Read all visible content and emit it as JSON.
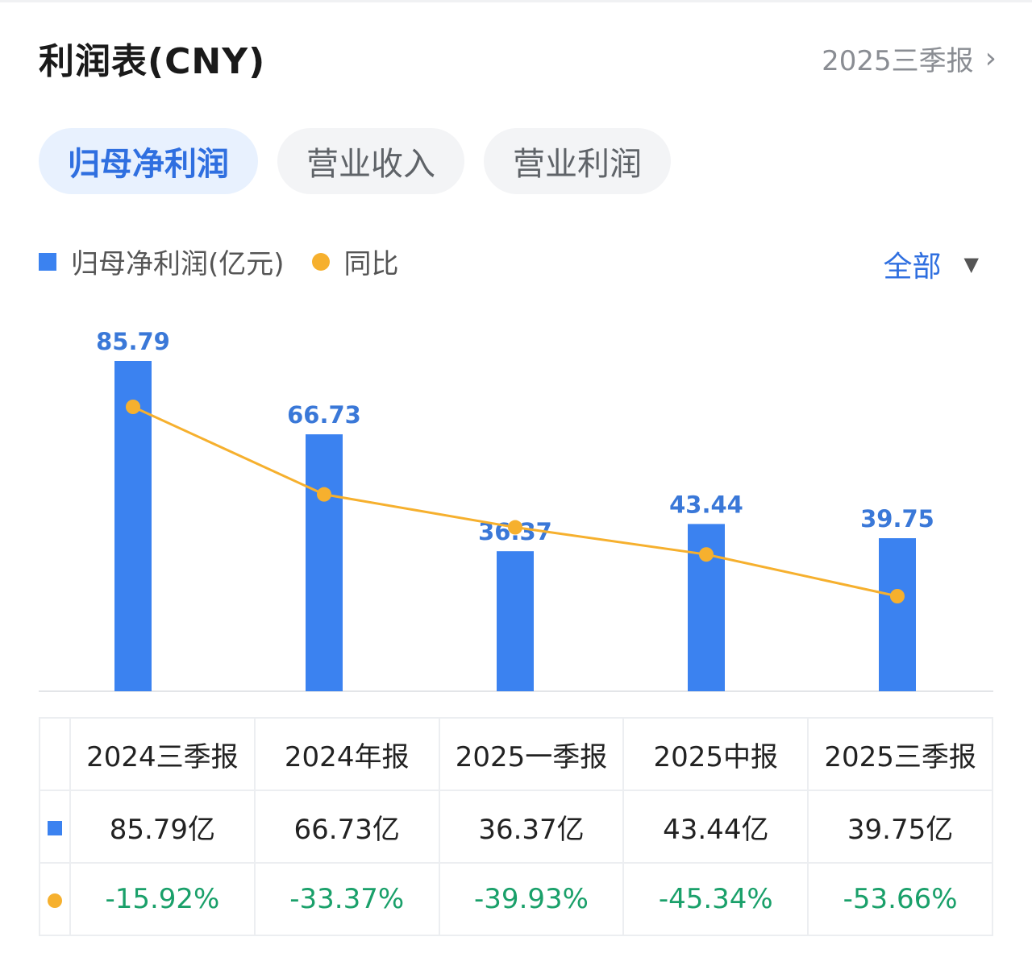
{
  "header": {
    "title": "利润表(CNY)",
    "period": "2025三季报"
  },
  "tabs": [
    {
      "label": "归母净利润",
      "active": true
    },
    {
      "label": "营业收入",
      "active": false
    },
    {
      "label": "营业利润",
      "active": false
    }
  ],
  "legend": {
    "bar_label": "归母净利润(亿元)",
    "line_label": "同比"
  },
  "filter": {
    "label": "全部"
  },
  "colors": {
    "bar": "#3b82f0",
    "line": "#f6b02e",
    "accent": "#2f6fe0",
    "negative": "#1aa06a"
  },
  "chart_data": {
    "type": "bar",
    "categories": [
      "2024三季报",
      "2024年报",
      "2025一季报",
      "2025中报",
      "2025三季报"
    ],
    "series": [
      {
        "name": "归母净利润(亿元)",
        "type": "bar",
        "values": [
          85.79,
          66.73,
          36.37,
          43.44,
          39.75
        ],
        "labels": [
          "85.79",
          "66.73",
          "36.37",
          "43.44",
          "39.75"
        ]
      },
      {
        "name": "同比",
        "type": "line",
        "values": [
          -15.92,
          -33.37,
          -39.93,
          -45.34,
          -53.66
        ]
      }
    ],
    "ylim": [
      0,
      85.79
    ]
  },
  "table": {
    "headers": [
      "2024三季报",
      "2024年报",
      "2025一季报",
      "2025中报",
      "2025三季报"
    ],
    "values_row": [
      "85.79亿",
      "66.73亿",
      "36.37亿",
      "43.44亿",
      "39.75亿"
    ],
    "yoy_row": [
      "-15.92%",
      "-33.37%",
      "-39.93%",
      "-45.34%",
      "-53.66%"
    ]
  }
}
